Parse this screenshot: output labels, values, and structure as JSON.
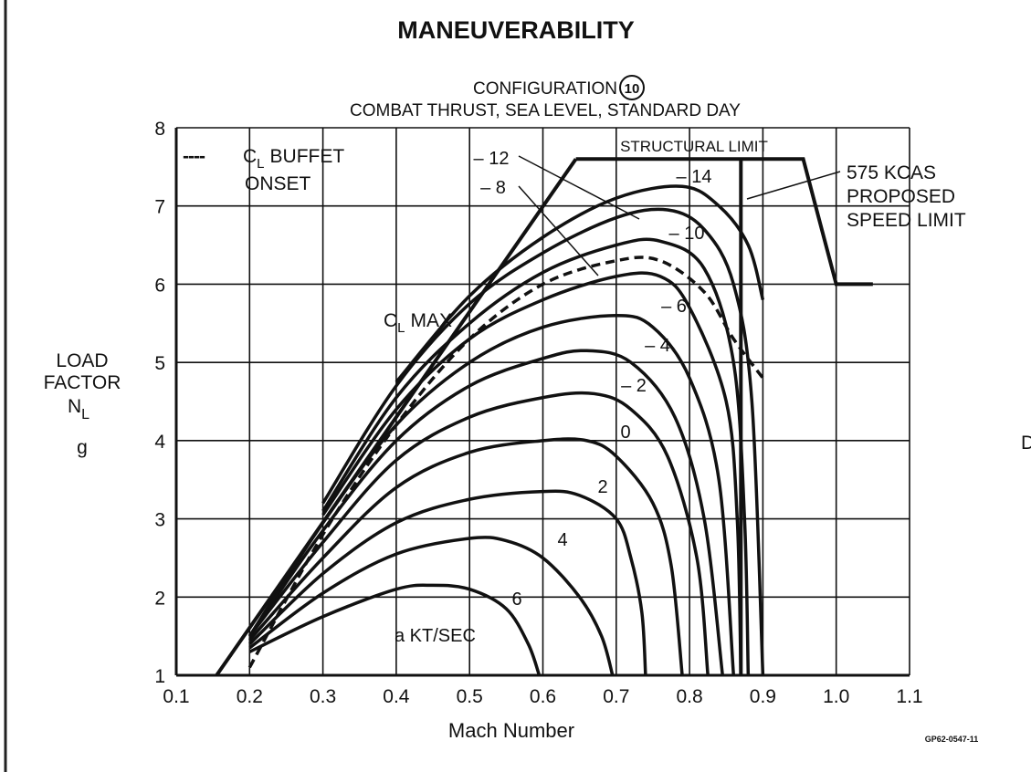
{
  "chart_data": {
    "type": "line",
    "title": "MANEUVERABILITY",
    "subtitle_config_label": "CONFIGURATION",
    "subtitle_config_number": "10",
    "subtitle": "COMBAT THRUST, SEA LEVEL, STANDARD DAY",
    "xlabel": "Mach Number",
    "ylabel_lines": [
      "LOAD",
      "FACTOR",
      "N",
      "g"
    ],
    "ylabel_subscript": "L",
    "xlim": [
      0.1,
      1.1
    ],
    "ylim": [
      1,
      8
    ],
    "grid": true,
    "x_ticks": [
      "0.1",
      "0.2",
      "0.3",
      "0.4",
      "0.5",
      "0.6",
      "0.7",
      "0.8",
      "0.9",
      "1.0",
      "1.1"
    ],
    "y_ticks": [
      "1",
      "2",
      "3",
      "4",
      "5",
      "6",
      "7",
      "8"
    ],
    "legend": {
      "dash": "----",
      "label_c": "C",
      "label_sub": "L",
      "label_rest": "BUFFET",
      "label_line2": "ONSET",
      "placement": "top-left"
    },
    "curve_family_label": "a KT/SEC",
    "series": [
      {
        "name": "6",
        "points": [
          [
            0.2,
            1.3
          ],
          [
            0.3,
            1.75
          ],
          [
            0.4,
            2.1
          ],
          [
            0.45,
            2.15
          ],
          [
            0.5,
            2.1
          ],
          [
            0.55,
            1.85
          ],
          [
            0.58,
            1.4
          ],
          [
            0.595,
            1.0
          ]
        ]
      },
      {
        "name": "4",
        "points": [
          [
            0.2,
            1.35
          ],
          [
            0.3,
            2.05
          ],
          [
            0.4,
            2.55
          ],
          [
            0.5,
            2.75
          ],
          [
            0.55,
            2.72
          ],
          [
            0.6,
            2.5
          ],
          [
            0.65,
            2.0
          ],
          [
            0.68,
            1.5
          ],
          [
            0.695,
            1.0
          ]
        ]
      },
      {
        "name": "2",
        "points": [
          [
            0.2,
            1.4
          ],
          [
            0.3,
            2.3
          ],
          [
            0.4,
            2.95
          ],
          [
            0.5,
            3.25
          ],
          [
            0.6,
            3.35
          ],
          [
            0.65,
            3.3
          ],
          [
            0.7,
            3.0
          ],
          [
            0.72,
            2.5
          ],
          [
            0.735,
            1.8
          ],
          [
            0.74,
            1.0
          ]
        ]
      },
      {
        "name": "0",
        "points": [
          [
            0.2,
            1.45
          ],
          [
            0.3,
            2.5
          ],
          [
            0.4,
            3.4
          ],
          [
            0.5,
            3.85
          ],
          [
            0.6,
            4.0
          ],
          [
            0.66,
            4.0
          ],
          [
            0.7,
            3.8
          ],
          [
            0.75,
            3.2
          ],
          [
            0.775,
            2.4
          ],
          [
            0.79,
            1.0
          ]
        ]
      },
      {
        "name": "-2",
        "points": [
          [
            0.2,
            1.5
          ],
          [
            0.3,
            2.7
          ],
          [
            0.4,
            3.75
          ],
          [
            0.5,
            4.3
          ],
          [
            0.6,
            4.55
          ],
          [
            0.67,
            4.6
          ],
          [
            0.72,
            4.4
          ],
          [
            0.77,
            3.8
          ],
          [
            0.81,
            2.5
          ],
          [
            0.825,
            1.0
          ]
        ]
      },
      {
        "name": "-4",
        "points": [
          [
            0.2,
            1.5
          ],
          [
            0.3,
            2.85
          ],
          [
            0.4,
            4.0
          ],
          [
            0.5,
            4.7
          ],
          [
            0.6,
            5.05
          ],
          [
            0.66,
            5.15
          ],
          [
            0.72,
            5.0
          ],
          [
            0.78,
            4.3
          ],
          [
            0.82,
            3.0
          ],
          [
            0.845,
            1.0
          ]
        ]
      },
      {
        "name": "-6",
        "points": [
          [
            0.2,
            1.5
          ],
          [
            0.3,
            2.95
          ],
          [
            0.4,
            4.2
          ],
          [
            0.5,
            5.0
          ],
          [
            0.6,
            5.45
          ],
          [
            0.7,
            5.6
          ],
          [
            0.75,
            5.45
          ],
          [
            0.8,
            4.8
          ],
          [
            0.84,
            3.5
          ],
          [
            0.86,
            1.0
          ]
        ]
      },
      {
        "name": "-8",
        "points": [
          [
            0.3,
            3.05
          ],
          [
            0.4,
            4.4
          ],
          [
            0.5,
            5.3
          ],
          [
            0.6,
            5.8
          ],
          [
            0.7,
            6.1
          ],
          [
            0.76,
            6.1
          ],
          [
            0.8,
            5.7
          ],
          [
            0.85,
            4.5
          ],
          [
            0.865,
            3.0
          ],
          [
            0.87,
            1.0
          ]
        ]
      },
      {
        "name": "-10",
        "points": [
          [
            0.3,
            3.1
          ],
          [
            0.4,
            4.55
          ],
          [
            0.5,
            5.5
          ],
          [
            0.6,
            6.15
          ],
          [
            0.7,
            6.5
          ],
          [
            0.76,
            6.55
          ],
          [
            0.82,
            6.2
          ],
          [
            0.86,
            5.0
          ],
          [
            0.875,
            3.0
          ],
          [
            0.88,
            1.0
          ]
        ]
      },
      {
        "name": "-12",
        "points": [
          [
            0.3,
            3.2
          ],
          [
            0.4,
            4.7
          ],
          [
            0.5,
            5.75
          ],
          [
            0.6,
            6.4
          ],
          [
            0.7,
            6.85
          ],
          [
            0.77,
            6.95
          ],
          [
            0.82,
            6.7
          ],
          [
            0.86,
            6.0
          ],
          [
            0.885,
            4.5
          ],
          [
            0.9,
            1.0
          ]
        ]
      },
      {
        "name": "-14",
        "points": [
          [
            0.4,
            4.75
          ],
          [
            0.5,
            5.85
          ],
          [
            0.6,
            6.6
          ],
          [
            0.7,
            7.1
          ],
          [
            0.79,
            7.25
          ],
          [
            0.84,
            7.0
          ],
          [
            0.88,
            6.5
          ],
          [
            0.9,
            5.8
          ]
        ]
      }
    ],
    "buffet_onset": [
      [
        0.2,
        1.1
      ],
      [
        0.3,
        2.8
      ],
      [
        0.4,
        4.2
      ],
      [
        0.5,
        5.3
      ],
      [
        0.6,
        6.0
      ],
      [
        0.7,
        6.3
      ],
      [
        0.76,
        6.3
      ],
      [
        0.82,
        5.9
      ],
      [
        0.86,
        5.3
      ],
      [
        0.9,
        4.8
      ]
    ],
    "cl_max": {
      "label_c": "C",
      "label_sub": "L",
      "label_rest": "MAX",
      "points": [
        [
          0.155,
          1.0
        ],
        [
          0.645,
          7.6
        ]
      ]
    },
    "structural_limit": {
      "label": "STRUCTURAL LIMIT",
      "points": [
        [
          0.645,
          7.6
        ],
        [
          0.955,
          7.6
        ],
        [
          1.0,
          6.0
        ],
        [
          1.05,
          6.0
        ]
      ]
    },
    "speed_limit": {
      "label_lines": [
        "575 KCAS",
        "PROPOSED",
        "SPEED LIMIT"
      ],
      "mach": 0.87,
      "points": [
        [
          0.87,
          7.6
        ],
        [
          0.87,
          1.0
        ]
      ]
    }
  },
  "figure_id": "GP62-0547-11",
  "edge_text": "D"
}
